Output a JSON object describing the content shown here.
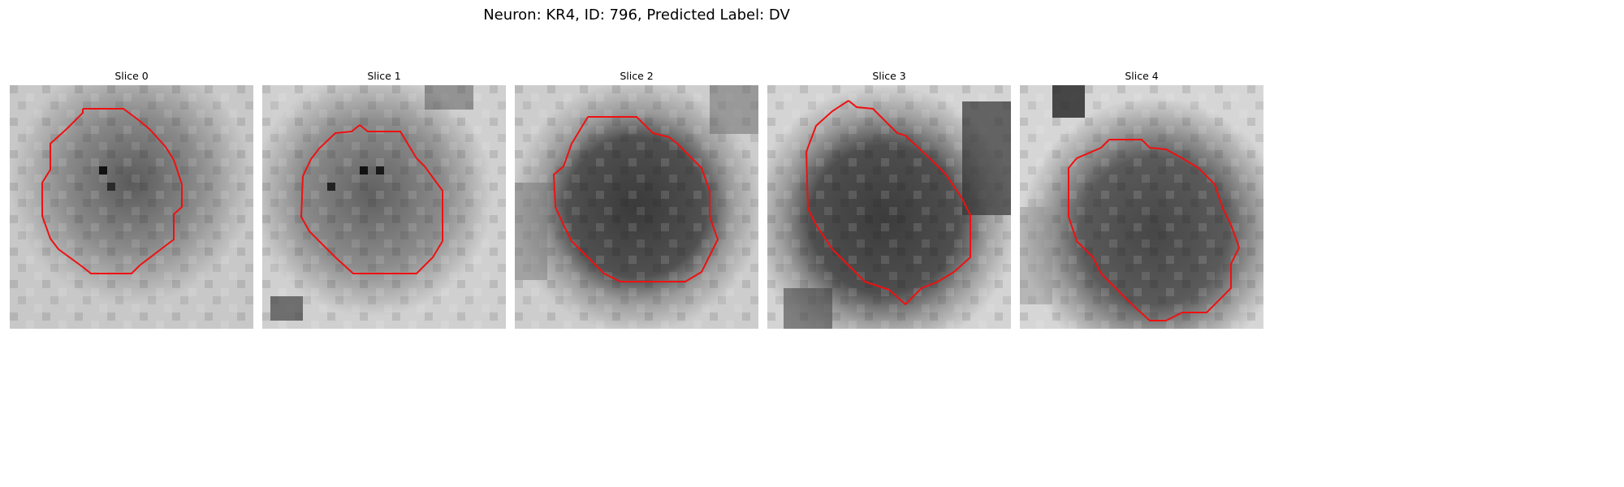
{
  "figure": {
    "title": "Neuron: KR4, ID: 796, Predicted Label: DV"
  },
  "colors": {
    "contour": "#ee1111",
    "background": "#ffffff"
  },
  "panels": [
    {
      "title": "Slice 0"
    },
    {
      "title": "Slice 1"
    },
    {
      "title": "Slice 2"
    },
    {
      "title": "Slice 3"
    },
    {
      "title": "Slice 4"
    }
  ]
}
